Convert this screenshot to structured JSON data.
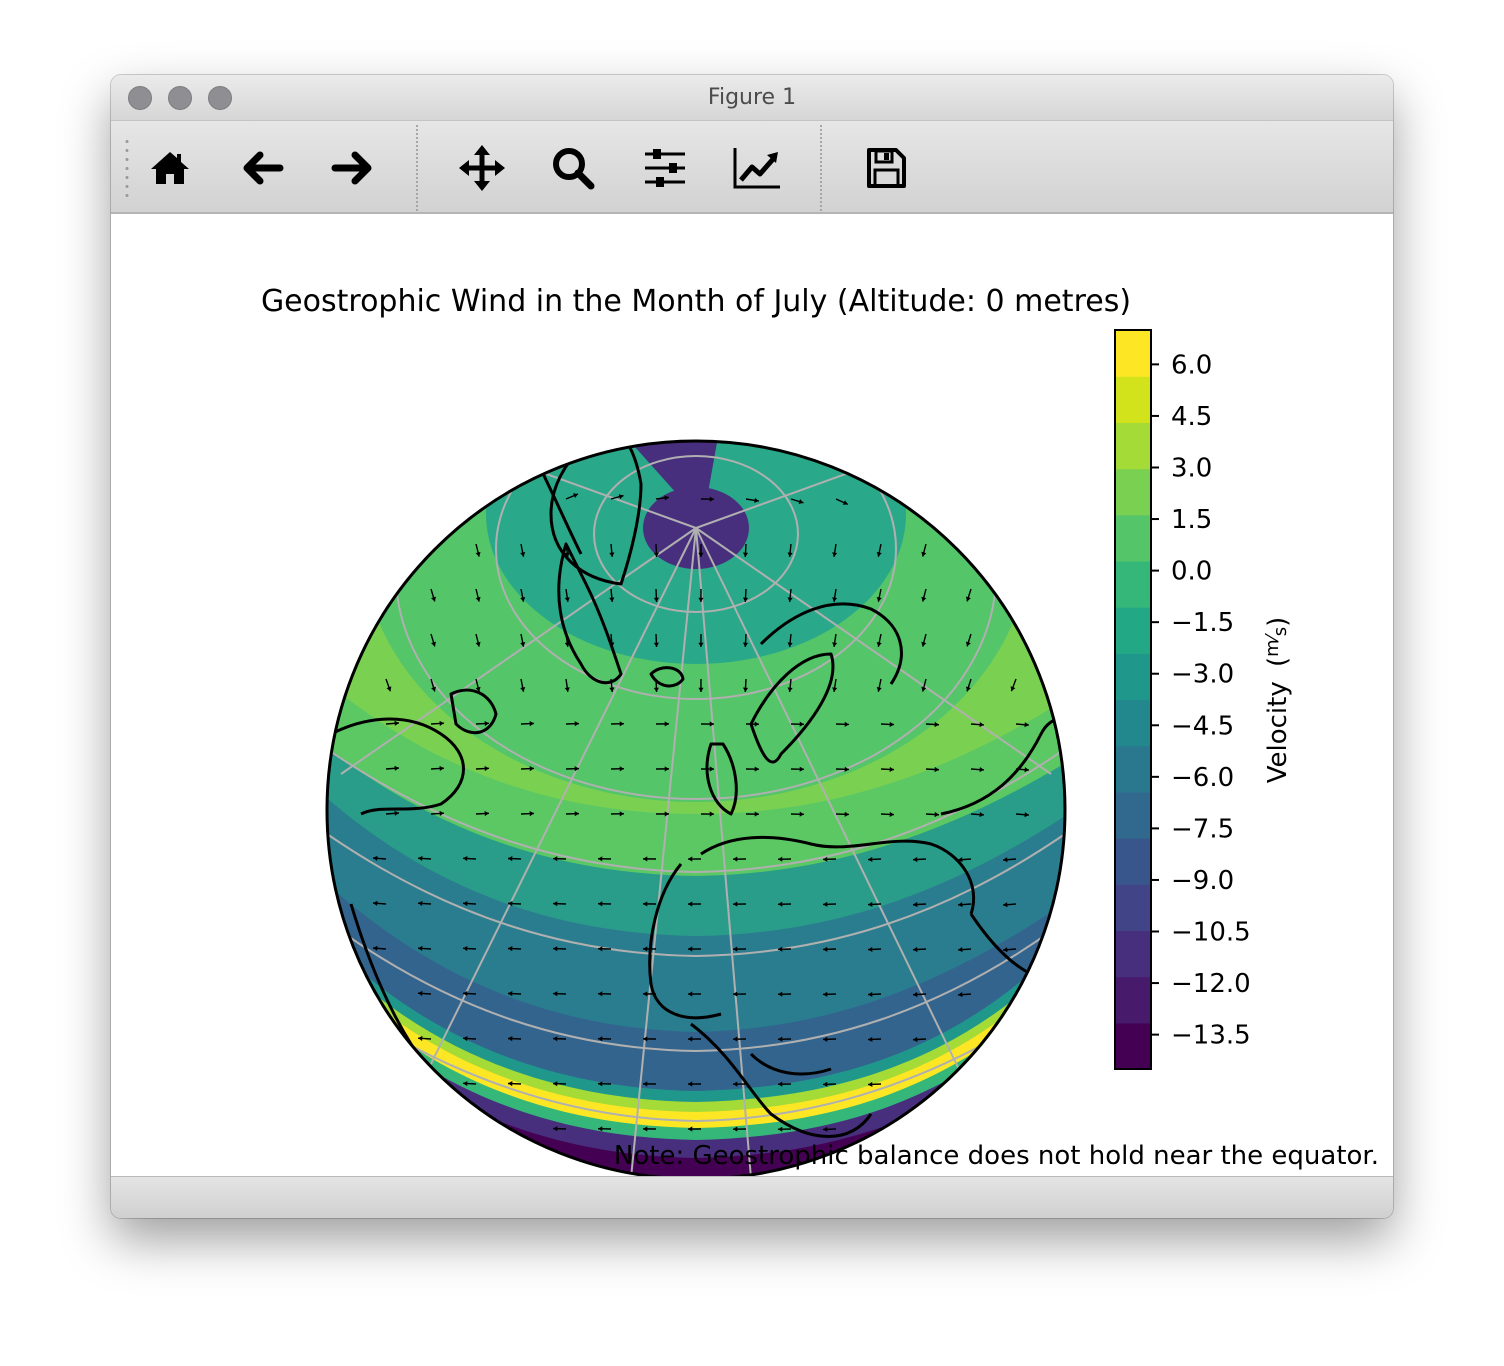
{
  "window": {
    "title": "Figure 1",
    "controls": [
      "close",
      "minimize",
      "zoom"
    ]
  },
  "toolbar": {
    "buttons": [
      {
        "name": "home",
        "icon": "home-icon"
      },
      {
        "name": "back",
        "icon": "arrow-left-icon"
      },
      {
        "name": "forward",
        "icon": "arrow-right-icon"
      },
      {
        "name": "pan",
        "icon": "move-icon"
      },
      {
        "name": "zoom",
        "icon": "magnifier-icon"
      },
      {
        "name": "configure-subplots",
        "icon": "sliders-icon"
      },
      {
        "name": "edit-axes",
        "icon": "line-chart-icon"
      },
      {
        "name": "save",
        "icon": "floppy-disk-icon"
      }
    ]
  },
  "figure": {
    "title": "Geostrophic Wind in the Month of July (Altitude: 0 metres)",
    "note": "Note: Geostrophic balance does not hold near the equator.",
    "colormap": "viridis"
  },
  "chart_data": {
    "type": "heatmap",
    "projection": "orthographic",
    "title": "Geostrophic Wind in the Month of July (Altitude: 0 metres)",
    "colorbar": {
      "label": "Velocity",
      "unit_numerator": "m",
      "unit_denominator": "s",
      "ticks": [
        "6.0",
        "4.5",
        "3.0",
        "1.5",
        "0.0",
        "−1.5",
        "−3.0",
        "−4.5",
        "−6.0",
        "−7.5",
        "−9.0",
        "−10.5",
        "−12.0",
        "−13.5"
      ],
      "tick_values": [
        6.0,
        4.5,
        3.0,
        1.5,
        0.0,
        -1.5,
        -3.0,
        -4.5,
        -6.0,
        -7.5,
        -9.0,
        -10.5,
        -12.0,
        -13.5
      ],
      "range": [
        -14.5,
        7.0
      ],
      "colors": [
        "#440154",
        "#481a6c",
        "#472f7d",
        "#414487",
        "#39568c",
        "#31688e",
        "#2a788e",
        "#23888e",
        "#1f988b",
        "#22a884",
        "#35b779",
        "#54c568",
        "#7ad151",
        "#a5db36",
        "#d2e21b",
        "#fde725"
      ]
    },
    "bands": [
      {
        "region": "north-pole-cap",
        "value": -14.0
      },
      {
        "region": "polar-ring",
        "value": -0.5
      },
      {
        "region": "high-latitudes",
        "value": 0.5
      },
      {
        "region": "mid-latitudes",
        "value": 2.5
      },
      {
        "region": "subtropics",
        "value": -2.0
      },
      {
        "region": "tropics",
        "value": -6.5
      },
      {
        "region": "near-equator-north",
        "value": 6.5
      },
      {
        "region": "near-equator-south",
        "value": -13.5
      }
    ],
    "grid": true
  }
}
